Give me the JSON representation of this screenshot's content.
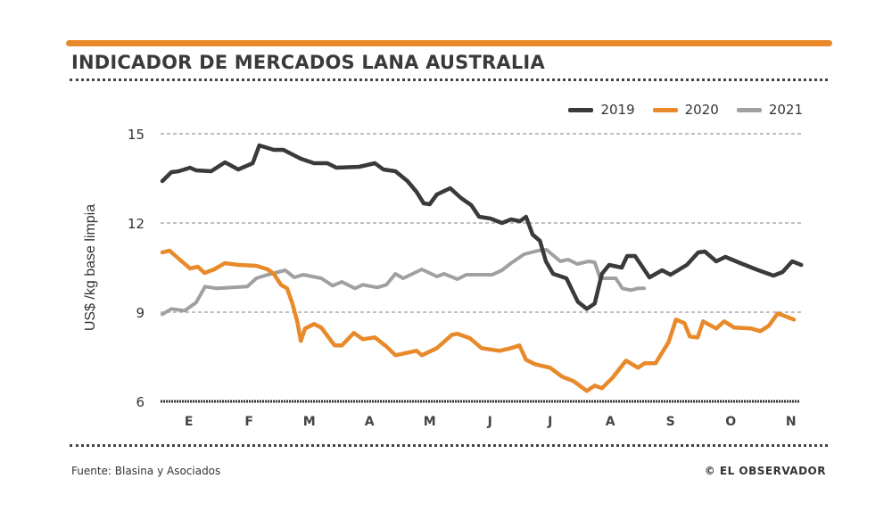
{
  "header": {
    "title": "INDICADOR DE MERCADOS LANA AUSTRALIA"
  },
  "footer": {
    "source": "Fuente: Blasina y Asociados",
    "credit": "© EL OBSERVADOR"
  },
  "colors": {
    "accent": "#e8892a",
    "2019": "#3a3a3a",
    "2020": "#e8892a",
    "2021": "#a0a0a0"
  },
  "chart_data": {
    "type": "line",
    "title": "INDICADOR DE MERCADOS LANA AUSTRALIA",
    "ylabel": "US$ /kg base limpia",
    "xlabel": "",
    "ylim": [
      6,
      15
    ],
    "yticks": [
      "15",
      "12",
      "9",
      "6"
    ],
    "ytick_values": [
      15,
      12,
      9,
      6
    ],
    "xlim": [
      0,
      10.8
    ],
    "xticks": [
      "E",
      "F",
      "M",
      "A",
      "M",
      "J",
      "J",
      "A",
      "S",
      "O",
      "N"
    ],
    "grid": true,
    "legend": "top-right",
    "series": [
      {
        "name": "2019",
        "points": [
          [
            0.03,
            13.41
          ],
          [
            0.18,
            13.71
          ],
          [
            0.3,
            13.74
          ],
          [
            0.49,
            13.86
          ],
          [
            0.59,
            13.77
          ],
          [
            0.84,
            13.74
          ],
          [
            1.07,
            14.04
          ],
          [
            1.29,
            13.8
          ],
          [
            1.53,
            14.01
          ],
          [
            1.64,
            14.61
          ],
          [
            1.88,
            14.46
          ],
          [
            2.04,
            14.46
          ],
          [
            2.33,
            14.16
          ],
          [
            2.55,
            14.01
          ],
          [
            2.77,
            14.01
          ],
          [
            2.92,
            13.86
          ],
          [
            3.3,
            13.89
          ],
          [
            3.56,
            14.01
          ],
          [
            3.7,
            13.8
          ],
          [
            3.9,
            13.74
          ],
          [
            4.1,
            13.41
          ],
          [
            4.25,
            13.05
          ],
          [
            4.37,
            12.66
          ],
          [
            4.47,
            12.63
          ],
          [
            4.59,
            12.96
          ],
          [
            4.81,
            13.17
          ],
          [
            4.99,
            12.84
          ],
          [
            5.16,
            12.6
          ],
          [
            5.29,
            12.21
          ],
          [
            5.48,
            12.15
          ],
          [
            5.67,
            12.0
          ],
          [
            5.82,
            12.12
          ],
          [
            5.97,
            12.06
          ],
          [
            6.07,
            12.21
          ],
          [
            6.18,
            11.61
          ],
          [
            6.3,
            11.4
          ],
          [
            6.4,
            10.71
          ],
          [
            6.52,
            10.29
          ],
          [
            6.74,
            10.14
          ],
          [
            6.93,
            9.35
          ],
          [
            7.08,
            9.11
          ],
          [
            7.21,
            9.29
          ],
          [
            7.33,
            10.29
          ],
          [
            7.45,
            10.59
          ],
          [
            7.66,
            10.5
          ],
          [
            7.75,
            10.89
          ],
          [
            7.88,
            10.89
          ],
          [
            8.12,
            10.17
          ],
          [
            8.33,
            10.41
          ],
          [
            8.47,
            10.26
          ],
          [
            8.74,
            10.59
          ],
          [
            8.93,
            11.01
          ],
          [
            9.04,
            11.04
          ],
          [
            9.23,
            10.71
          ],
          [
            9.38,
            10.86
          ],
          [
            9.63,
            10.65
          ],
          [
            9.93,
            10.41
          ],
          [
            10.18,
            10.23
          ],
          [
            10.33,
            10.35
          ],
          [
            10.49,
            10.71
          ],
          [
            10.64,
            10.59
          ]
        ]
      },
      {
        "name": "2020",
        "points": [
          [
            0.03,
            11.01
          ],
          [
            0.15,
            11.07
          ],
          [
            0.3,
            10.8
          ],
          [
            0.49,
            10.47
          ],
          [
            0.62,
            10.53
          ],
          [
            0.73,
            10.32
          ],
          [
            0.89,
            10.44
          ],
          [
            1.07,
            10.65
          ],
          [
            1.29,
            10.59
          ],
          [
            1.59,
            10.56
          ],
          [
            1.78,
            10.44
          ],
          [
            1.88,
            10.29
          ],
          [
            2.0,
            9.92
          ],
          [
            2.1,
            9.8
          ],
          [
            2.19,
            9.29
          ],
          [
            2.27,
            8.69
          ],
          [
            2.33,
            8.03
          ],
          [
            2.4,
            8.45
          ],
          [
            2.55,
            8.6
          ],
          [
            2.67,
            8.48
          ],
          [
            2.89,
            7.88
          ],
          [
            3.01,
            7.88
          ],
          [
            3.21,
            8.3
          ],
          [
            3.36,
            8.09
          ],
          [
            3.56,
            8.15
          ],
          [
            3.75,
            7.85
          ],
          [
            3.9,
            7.55
          ],
          [
            4.04,
            7.61
          ],
          [
            4.25,
            7.7
          ],
          [
            4.34,
            7.55
          ],
          [
            4.59,
            7.79
          ],
          [
            4.84,
            8.24
          ],
          [
            4.93,
            8.27
          ],
          [
            5.14,
            8.12
          ],
          [
            5.33,
            7.79
          ],
          [
            5.63,
            7.7
          ],
          [
            5.82,
            7.79
          ],
          [
            5.96,
            7.88
          ],
          [
            6.07,
            7.4
          ],
          [
            6.22,
            7.25
          ],
          [
            6.47,
            7.13
          ],
          [
            6.67,
            6.83
          ],
          [
            6.86,
            6.68
          ],
          [
            7.08,
            6.35
          ],
          [
            7.21,
            6.53
          ],
          [
            7.33,
            6.44
          ],
          [
            7.51,
            6.8
          ],
          [
            7.73,
            7.37
          ],
          [
            7.93,
            7.13
          ],
          [
            8.04,
            7.28
          ],
          [
            8.22,
            7.28
          ],
          [
            8.44,
            8.0
          ],
          [
            8.56,
            8.75
          ],
          [
            8.7,
            8.63
          ],
          [
            8.79,
            8.18
          ],
          [
            8.92,
            8.15
          ],
          [
            9.01,
            8.69
          ],
          [
            9.23,
            8.45
          ],
          [
            9.36,
            8.69
          ],
          [
            9.53,
            8.48
          ],
          [
            9.81,
            8.45
          ],
          [
            9.96,
            8.36
          ],
          [
            10.1,
            8.54
          ],
          [
            10.25,
            8.96
          ],
          [
            10.52,
            8.75
          ]
        ]
      },
      {
        "name": "2021",
        "points": [
          [
            0.03,
            8.93
          ],
          [
            0.18,
            9.11
          ],
          [
            0.4,
            9.05
          ],
          [
            0.59,
            9.32
          ],
          [
            0.74,
            9.86
          ],
          [
            0.93,
            9.8
          ],
          [
            1.19,
            9.83
          ],
          [
            1.44,
            9.86
          ],
          [
            1.59,
            10.14
          ],
          [
            1.78,
            10.26
          ],
          [
            2.07,
            10.41
          ],
          [
            2.22,
            10.17
          ],
          [
            2.37,
            10.26
          ],
          [
            2.67,
            10.14
          ],
          [
            2.86,
            9.89
          ],
          [
            3.01,
            10.02
          ],
          [
            3.23,
            9.8
          ],
          [
            3.36,
            9.92
          ],
          [
            3.6,
            9.83
          ],
          [
            3.75,
            9.92
          ],
          [
            3.9,
            10.29
          ],
          [
            4.03,
            10.14
          ],
          [
            4.34,
            10.44
          ],
          [
            4.59,
            10.2
          ],
          [
            4.71,
            10.29
          ],
          [
            4.93,
            10.11
          ],
          [
            5.08,
            10.26
          ],
          [
            5.33,
            10.26
          ],
          [
            5.51,
            10.26
          ],
          [
            5.67,
            10.41
          ],
          [
            5.82,
            10.65
          ],
          [
            6.04,
            10.95
          ],
          [
            6.27,
            11.07
          ],
          [
            6.41,
            11.1
          ],
          [
            6.64,
            10.71
          ],
          [
            6.77,
            10.77
          ],
          [
            6.92,
            10.62
          ],
          [
            7.11,
            10.71
          ],
          [
            7.21,
            10.68
          ],
          [
            7.3,
            10.14
          ],
          [
            7.56,
            10.14
          ],
          [
            7.67,
            9.8
          ],
          [
            7.81,
            9.74
          ],
          [
            7.93,
            9.8
          ],
          [
            8.03,
            9.8
          ]
        ]
      }
    ]
  }
}
